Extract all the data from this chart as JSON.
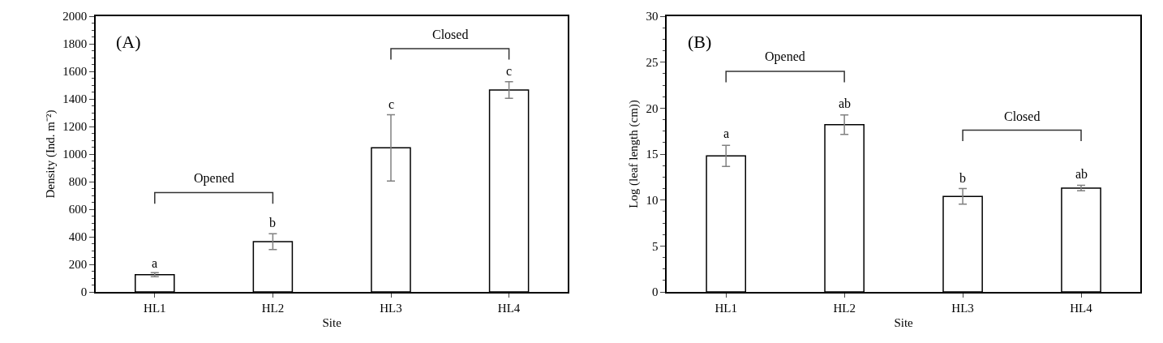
{
  "chart_data": [
    {
      "type": "bar",
      "title": "(A)",
      "xlabel": "Site",
      "ylabel": "Density (Ind. m⁻²)",
      "categories": [
        "HL1",
        "HL2",
        "HL3",
        "HL4"
      ],
      "values": [
        125,
        365,
        1045,
        1465
      ],
      "errors": [
        15,
        57,
        240,
        60
      ],
      "color": "#ffffff",
      "ylim": [
        0,
        2000
      ],
      "yticks": [
        0,
        200,
        400,
        600,
        800,
        1000,
        1200,
        1400,
        1600,
        1800,
        2000
      ],
      "annotations": [
        "Opened",
        "Closed",
        {
          "text": "a",
          "x": "HL1",
          "y": 150
        },
        {
          "text": "b",
          "x": "HL2",
          "y": 440
        },
        {
          "text": "c",
          "x": "HL3",
          "y": 1300
        },
        {
          "text": "c",
          "x": "HL4",
          "y": 1540
        }
      ]
    },
    {
      "type": "bar",
      "title": "(B)",
      "xlabel": "Site",
      "ylabel": "Log (leaf length (cm))",
      "categories": [
        "HL1",
        "HL2",
        "HL3",
        "HL4"
      ],
      "values": [
        14.8,
        18.2,
        10.4,
        11.3
      ],
      "errors": [
        1.15,
        1.05,
        0.85,
        0.3
      ],
      "color": "#ffffff",
      "ylim": [
        0,
        30
      ],
      "yticks": [
        0,
        5,
        10,
        15,
        20,
        25,
        30
      ],
      "annotations": [
        "Opened",
        "Closed",
        {
          "text": "a",
          "x": "HL1",
          "y": 16.3
        },
        {
          "text": "ab",
          "x": "HL2",
          "y": 19.6
        },
        {
          "text": "b",
          "x": "HL3",
          "y": 11.5
        },
        {
          "text": "ab",
          "x": "HL4",
          "y": 11.9
        }
      ]
    }
  ]
}
